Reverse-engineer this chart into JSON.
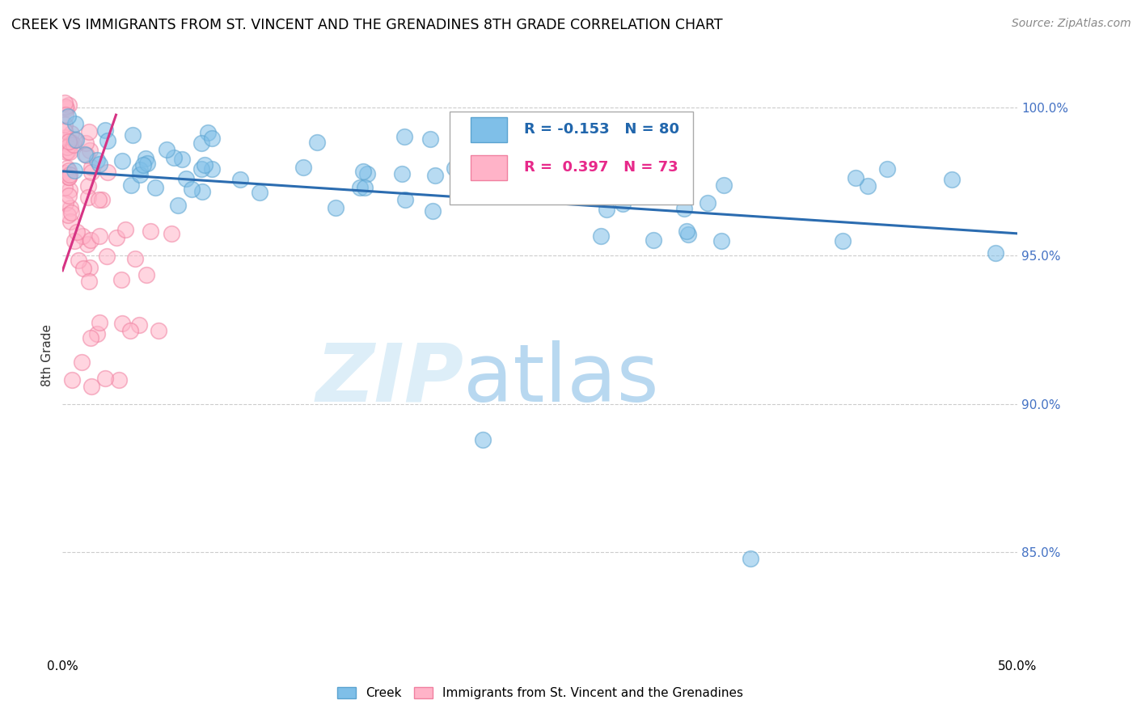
{
  "title": "CREEK VS IMMIGRANTS FROM ST. VINCENT AND THE GRENADINES 8TH GRADE CORRELATION CHART",
  "source": "Source: ZipAtlas.com",
  "ylabel": "8th Grade",
  "x_min": 0.0,
  "x_max": 0.5,
  "y_min": 0.815,
  "y_max": 1.018,
  "x_ticks": [
    0.0,
    0.1,
    0.2,
    0.3,
    0.4,
    0.5
  ],
  "x_tick_labels": [
    "0.0%",
    "",
    "",
    "",
    "",
    "50.0%"
  ],
  "y_ticks": [
    0.85,
    0.9,
    0.95,
    1.0
  ],
  "y_tick_labels": [
    "85.0%",
    "90.0%",
    "95.0%",
    "100.0%"
  ],
  "creek_color": "#7fbfe8",
  "creek_edge_color": "#5ba3d0",
  "pink_color": "#ffb3c8",
  "pink_edge_color": "#f080a0",
  "trendline_blue_color": "#2b6cb0",
  "trendline_pink_color": "#d63384",
  "legend_r_blue": "-0.153",
  "legend_n_blue": "80",
  "legend_r_pink": "0.397",
  "legend_n_pink": "73",
  "grid_color": "#cccccc",
  "bg_color": "#ffffff",
  "blue_trend_x0": 0.0,
  "blue_trend_y0": 0.9785,
  "blue_trend_x1": 0.5,
  "blue_trend_y1": 0.9575,
  "pink_trend_x0": 0.0,
  "pink_trend_y0": 0.945,
  "pink_trend_x1": 0.028,
  "pink_trend_y1": 0.9975
}
